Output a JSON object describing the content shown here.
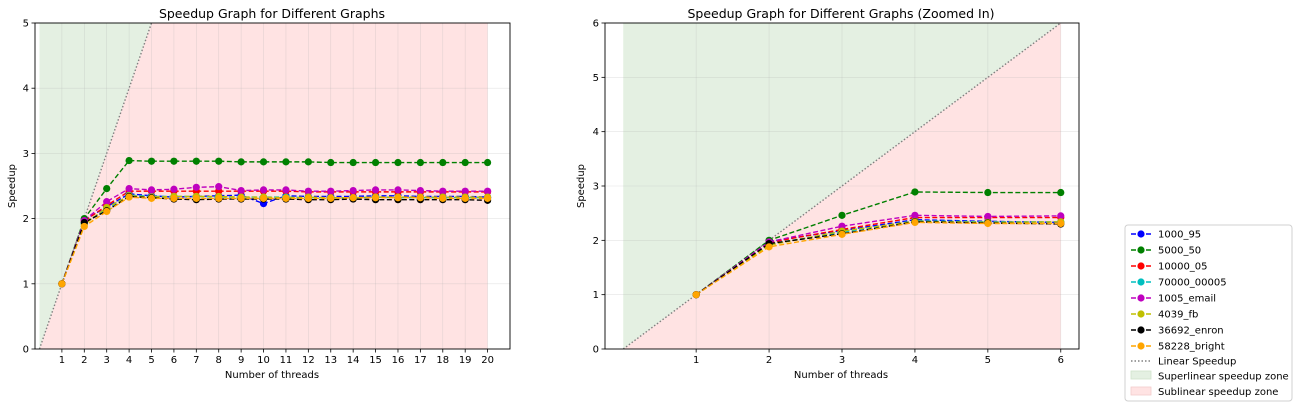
{
  "chart_data": [
    {
      "type": "line",
      "title": "Speedup Graph for Different Graphs",
      "xlabel": "Number of threads",
      "ylabel": "Speedup",
      "xlim": [
        -0.2,
        21
      ],
      "ylim": [
        0,
        5
      ],
      "xticks": [
        1,
        2,
        3,
        4,
        5,
        6,
        7,
        8,
        9,
        10,
        11,
        12,
        13,
        14,
        15,
        16,
        17,
        18,
        19,
        20
      ],
      "yticks": [
        0,
        1,
        2,
        3,
        4,
        5
      ],
      "grid": true,
      "x": [
        1,
        2,
        3,
        4,
        5,
        6,
        7,
        8,
        9,
        10,
        11,
        12,
        13,
        14,
        15,
        16,
        17,
        18,
        19,
        20
      ],
      "series": [
        {
          "name": "1000_95",
          "color": "#0000ff",
          "values": [
            1.0,
            1.98,
            2.18,
            2.38,
            2.35,
            2.33,
            2.34,
            2.35,
            2.36,
            2.23,
            2.35,
            2.34,
            2.34,
            2.34,
            2.35,
            2.35,
            2.34,
            2.34,
            2.34,
            2.33
          ]
        },
        {
          "name": "5000_50",
          "color": "#008000",
          "values": [
            1.0,
            2.0,
            2.46,
            2.89,
            2.88,
            2.88,
            2.88,
            2.88,
            2.87,
            2.87,
            2.87,
            2.87,
            2.86,
            2.86,
            2.86,
            2.86,
            2.86,
            2.86,
            2.86,
            2.86
          ]
        },
        {
          "name": "10000_05",
          "color": "#ff0000",
          "values": [
            1.0,
            1.96,
            2.2,
            2.42,
            2.42,
            2.42,
            2.42,
            2.42,
            2.42,
            2.42,
            2.42,
            2.41,
            2.41,
            2.41,
            2.41,
            2.41,
            2.41,
            2.41,
            2.41,
            2.41
          ]
        },
        {
          "name": "70000_00005",
          "color": "#00bfbf",
          "values": [
            1.0,
            1.93,
            2.15,
            2.36,
            2.34,
            2.34,
            2.34,
            2.33,
            2.33,
            2.33,
            2.33,
            2.32,
            2.32,
            2.32,
            2.33,
            2.32,
            2.32,
            2.32,
            2.32,
            2.32
          ]
        },
        {
          "name": "1005_email",
          "color": "#bf00bf",
          "values": [
            1.0,
            1.97,
            2.26,
            2.46,
            2.44,
            2.45,
            2.48,
            2.49,
            2.43,
            2.44,
            2.44,
            2.42,
            2.42,
            2.43,
            2.44,
            2.44,
            2.43,
            2.42,
            2.42,
            2.42
          ]
        },
        {
          "name": "4039_fb",
          "color": "#bfbf00",
          "values": [
            1.0,
            1.91,
            2.17,
            2.35,
            2.33,
            2.34,
            2.34,
            2.34,
            2.33,
            2.33,
            2.32,
            2.33,
            2.32,
            2.32,
            2.33,
            2.33,
            2.33,
            2.33,
            2.33,
            2.33
          ]
        },
        {
          "name": "36692_enron",
          "color": "#000000",
          "values": [
            1.0,
            1.94,
            2.12,
            2.34,
            2.32,
            2.3,
            2.29,
            2.3,
            2.3,
            2.3,
            2.3,
            2.29,
            2.29,
            2.3,
            2.29,
            2.29,
            2.29,
            2.29,
            2.29,
            2.28
          ]
        },
        {
          "name": "58228_bright",
          "color": "#ffa500",
          "values": [
            1.0,
            1.88,
            2.11,
            2.33,
            2.31,
            2.31,
            2.31,
            2.31,
            2.31,
            2.31,
            2.31,
            2.31,
            2.31,
            2.32,
            2.32,
            2.32,
            2.32,
            2.31,
            2.31,
            2.31
          ]
        }
      ]
    },
    {
      "type": "line",
      "title": "Speedup Graph for Different Graphs (Zoomed In)",
      "xlabel": "Number of threads",
      "ylabel": "Speedup",
      "xlim": [
        -0.25,
        6.25
      ],
      "ylim": [
        0,
        6
      ],
      "xticks": [
        1,
        2,
        3,
        4,
        5,
        6
      ],
      "yticks": [
        0,
        1,
        2,
        3,
        4,
        5,
        6
      ],
      "grid": true,
      "x": [
        1,
        2,
        3,
        4,
        5,
        6
      ],
      "series": [
        {
          "name": "1000_95",
          "color": "#0000ff",
          "values": [
            1.0,
            1.98,
            2.18,
            2.38,
            2.35,
            2.33
          ]
        },
        {
          "name": "5000_50",
          "color": "#008000",
          "values": [
            1.0,
            2.0,
            2.46,
            2.89,
            2.88,
            2.88
          ]
        },
        {
          "name": "10000_05",
          "color": "#ff0000",
          "values": [
            1.0,
            1.96,
            2.2,
            2.42,
            2.42,
            2.42
          ]
        },
        {
          "name": "70000_00005",
          "color": "#00bfbf",
          "values": [
            1.0,
            1.93,
            2.15,
            2.36,
            2.34,
            2.34
          ]
        },
        {
          "name": "1005_email",
          "color": "#bf00bf",
          "values": [
            1.0,
            1.97,
            2.26,
            2.46,
            2.44,
            2.45
          ]
        },
        {
          "name": "4039_fb",
          "color": "#bfbf00",
          "values": [
            1.0,
            1.91,
            2.17,
            2.35,
            2.33,
            2.34
          ]
        },
        {
          "name": "36692_enron",
          "color": "#000000",
          "values": [
            1.0,
            1.94,
            2.12,
            2.34,
            2.32,
            2.3
          ]
        },
        {
          "name": "58228_bright",
          "color": "#ffa500",
          "values": [
            1.0,
            1.88,
            2.11,
            2.33,
            2.31,
            2.31
          ]
        }
      ]
    }
  ],
  "legend": {
    "placement": "lower-right outside",
    "series_entries": [
      "1000_95",
      "5000_50",
      "10000_05",
      "70000_00005",
      "1005_email",
      "4039_fb",
      "36692_enron",
      "58228_bright"
    ],
    "linear_label": "Linear Speedup",
    "superlinear_label": "Superlinear speedup zone",
    "sublinear_label": "Sublinear speedup zone",
    "linear_color": "#808080",
    "superlinear_color": "#e4f0e2",
    "sublinear_color": "#ffe3e3"
  }
}
